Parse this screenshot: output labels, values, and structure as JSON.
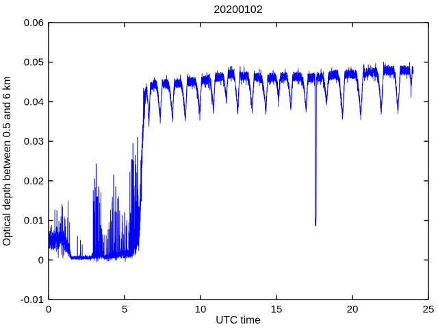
{
  "chart_data": {
    "type": "line",
    "title": "20200102",
    "xlabel": "UTC time",
    "ylabel": "Optical depth between 0.5 and 6 km",
    "xlim": [
      0,
      25
    ],
    "ylim": [
      -0.01,
      0.06
    ],
    "xticks": [
      0,
      5,
      10,
      15,
      20,
      25
    ],
    "xtick_labels": [
      "0",
      "5",
      "10",
      "15",
      "20",
      "25"
    ],
    "yticks": [
      -0.01,
      0,
      0.01,
      0.02,
      0.03,
      0.04,
      0.05,
      0.06
    ],
    "ytick_labels": [
      "-0.01",
      "0",
      "0.01",
      "0.02",
      "0.03",
      "0.04",
      "0.05",
      "0.06"
    ],
    "grid": false,
    "legend": "none",
    "line_color": "#0000ff",
    "axis_color": "#000000",
    "background_color": "#ffffff",
    "x_data_range": [
      0,
      24.0
    ],
    "series_model": {
      "description_of_encoding": "noisy optical-depth trace encoded as mean curve anchors + noise amplitude anchors + spike events + periodic dips + one deep dropout",
      "mean_curve": [
        [
          0,
          0.0045
        ],
        [
          0.5,
          0.005
        ],
        [
          1.0,
          0.005
        ],
        [
          1.3,
          0.003
        ],
        [
          1.5,
          0.0006
        ],
        [
          2.8,
          0.0006
        ],
        [
          2.9,
          0.0012
        ],
        [
          3.45,
          0.0012
        ],
        [
          3.6,
          0.0007
        ],
        [
          4.1,
          0.001
        ],
        [
          4.75,
          0.0013
        ],
        [
          5.35,
          0.0018
        ],
        [
          5.7,
          0.0035
        ],
        [
          5.95,
          0.007
        ],
        [
          6.05,
          0.016
        ],
        [
          6.18,
          0.03
        ],
        [
          6.3,
          0.04
        ],
        [
          6.45,
          0.0435
        ],
        [
          7.0,
          0.0445
        ],
        [
          8.0,
          0.0445
        ],
        [
          9.0,
          0.045
        ],
        [
          10.0,
          0.0452
        ],
        [
          11.0,
          0.046
        ],
        [
          12.0,
          0.047
        ],
        [
          13.0,
          0.0465
        ],
        [
          14.0,
          0.046
        ],
        [
          15.0,
          0.0462
        ],
        [
          16.0,
          0.0465
        ],
        [
          17.0,
          0.046
        ],
        [
          18.0,
          0.0462
        ],
        [
          19.0,
          0.047
        ],
        [
          20.0,
          0.047
        ],
        [
          21.0,
          0.0473
        ],
        [
          22.0,
          0.0478
        ],
        [
          23.0,
          0.048
        ],
        [
          24.0,
          0.048
        ]
      ],
      "noise_amplitude": [
        [
          0,
          0.0022
        ],
        [
          1.0,
          0.0024
        ],
        [
          1.3,
          0.002
        ],
        [
          1.5,
          0.0004
        ],
        [
          2.8,
          0.0004
        ],
        [
          2.9,
          0.0009
        ],
        [
          3.45,
          0.0009
        ],
        [
          3.6,
          0.0005
        ],
        [
          4.1,
          0.0007
        ],
        [
          4.75,
          0.0009
        ],
        [
          5.35,
          0.0013
        ],
        [
          5.7,
          0.0022
        ],
        [
          5.95,
          0.0035
        ],
        [
          6.1,
          0.005
        ],
        [
          6.3,
          0.003
        ],
        [
          6.5,
          0.0012
        ],
        [
          24.0,
          0.0012
        ]
      ],
      "spike_segments": [
        [
          0,
          0.45,
          0.1,
          0.005
        ],
        [
          0.45,
          1.2,
          0.12,
          0.008
        ],
        [
          1.2,
          1.5,
          0.08,
          0.009
        ],
        [
          1.5,
          2.85,
          0.05,
          0.004
        ],
        [
          2.85,
          3.45,
          0.25,
          0.019
        ],
        [
          3.45,
          4.1,
          0.18,
          0.012
        ],
        [
          4.1,
          4.75,
          0.25,
          0.017
        ],
        [
          4.75,
          5.35,
          0.25,
          0.011
        ],
        [
          5.35,
          5.95,
          0.4,
          0.022
        ],
        [
          5.95,
          6.3,
          0.22,
          0.007
        ]
      ],
      "explicit_spikes": [
        [
          0.55,
          0.0125
        ],
        [
          0.9,
          0.0135
        ],
        [
          1.28,
          0.0148
        ],
        [
          1.9,
          0.006
        ],
        [
          2.1,
          0.005
        ],
        [
          3.02,
          0.0205
        ],
        [
          3.13,
          0.0243
        ],
        [
          3.22,
          0.016
        ],
        [
          3.3,
          0.0185
        ],
        [
          4.28,
          0.0215
        ],
        [
          4.42,
          0.0185
        ],
        [
          4.6,
          0.016
        ],
        [
          5.0,
          0.012
        ],
        [
          5.15,
          0.01
        ],
        [
          5.45,
          0.0255
        ],
        [
          5.55,
          0.0295
        ],
        [
          5.7,
          0.0265
        ],
        [
          5.85,
          0.031
        ]
      ],
      "periodic_dips": [
        [
          6.6,
          0.0345,
          0.18,
          0.1
        ],
        [
          7.35,
          0.0355,
          0.3,
          0.12
        ],
        [
          8.15,
          0.036,
          0.3,
          0.12
        ],
        [
          9.0,
          0.0355,
          0.32,
          0.12
        ],
        [
          9.95,
          0.037,
          0.32,
          0.12
        ],
        [
          10.85,
          0.038,
          0.3,
          0.12
        ],
        [
          11.7,
          0.0405,
          0.25,
          0.1
        ],
        [
          12.45,
          0.0375,
          0.3,
          0.12
        ],
        [
          13.4,
          0.038,
          0.32,
          0.12
        ],
        [
          14.3,
          0.0375,
          0.32,
          0.12
        ],
        [
          15.15,
          0.0405,
          0.25,
          0.1
        ],
        [
          15.95,
          0.0385,
          0.3,
          0.12
        ],
        [
          16.95,
          0.038,
          0.32,
          0.12
        ],
        [
          18.3,
          0.0395,
          0.28,
          0.12
        ],
        [
          19.35,
          0.036,
          0.35,
          0.15
        ],
        [
          20.55,
          0.036,
          0.35,
          0.15
        ],
        [
          21.9,
          0.0375,
          0.32,
          0.14
        ],
        [
          23.0,
          0.0375,
          0.3,
          0.14
        ],
        [
          23.85,
          0.043,
          0.1,
          0.08
        ]
      ],
      "deep_dropout": {
        "x": 17.58,
        "min": 0.0095,
        "side_width": 0.018,
        "bottom_width": 0.055
      }
    }
  }
}
